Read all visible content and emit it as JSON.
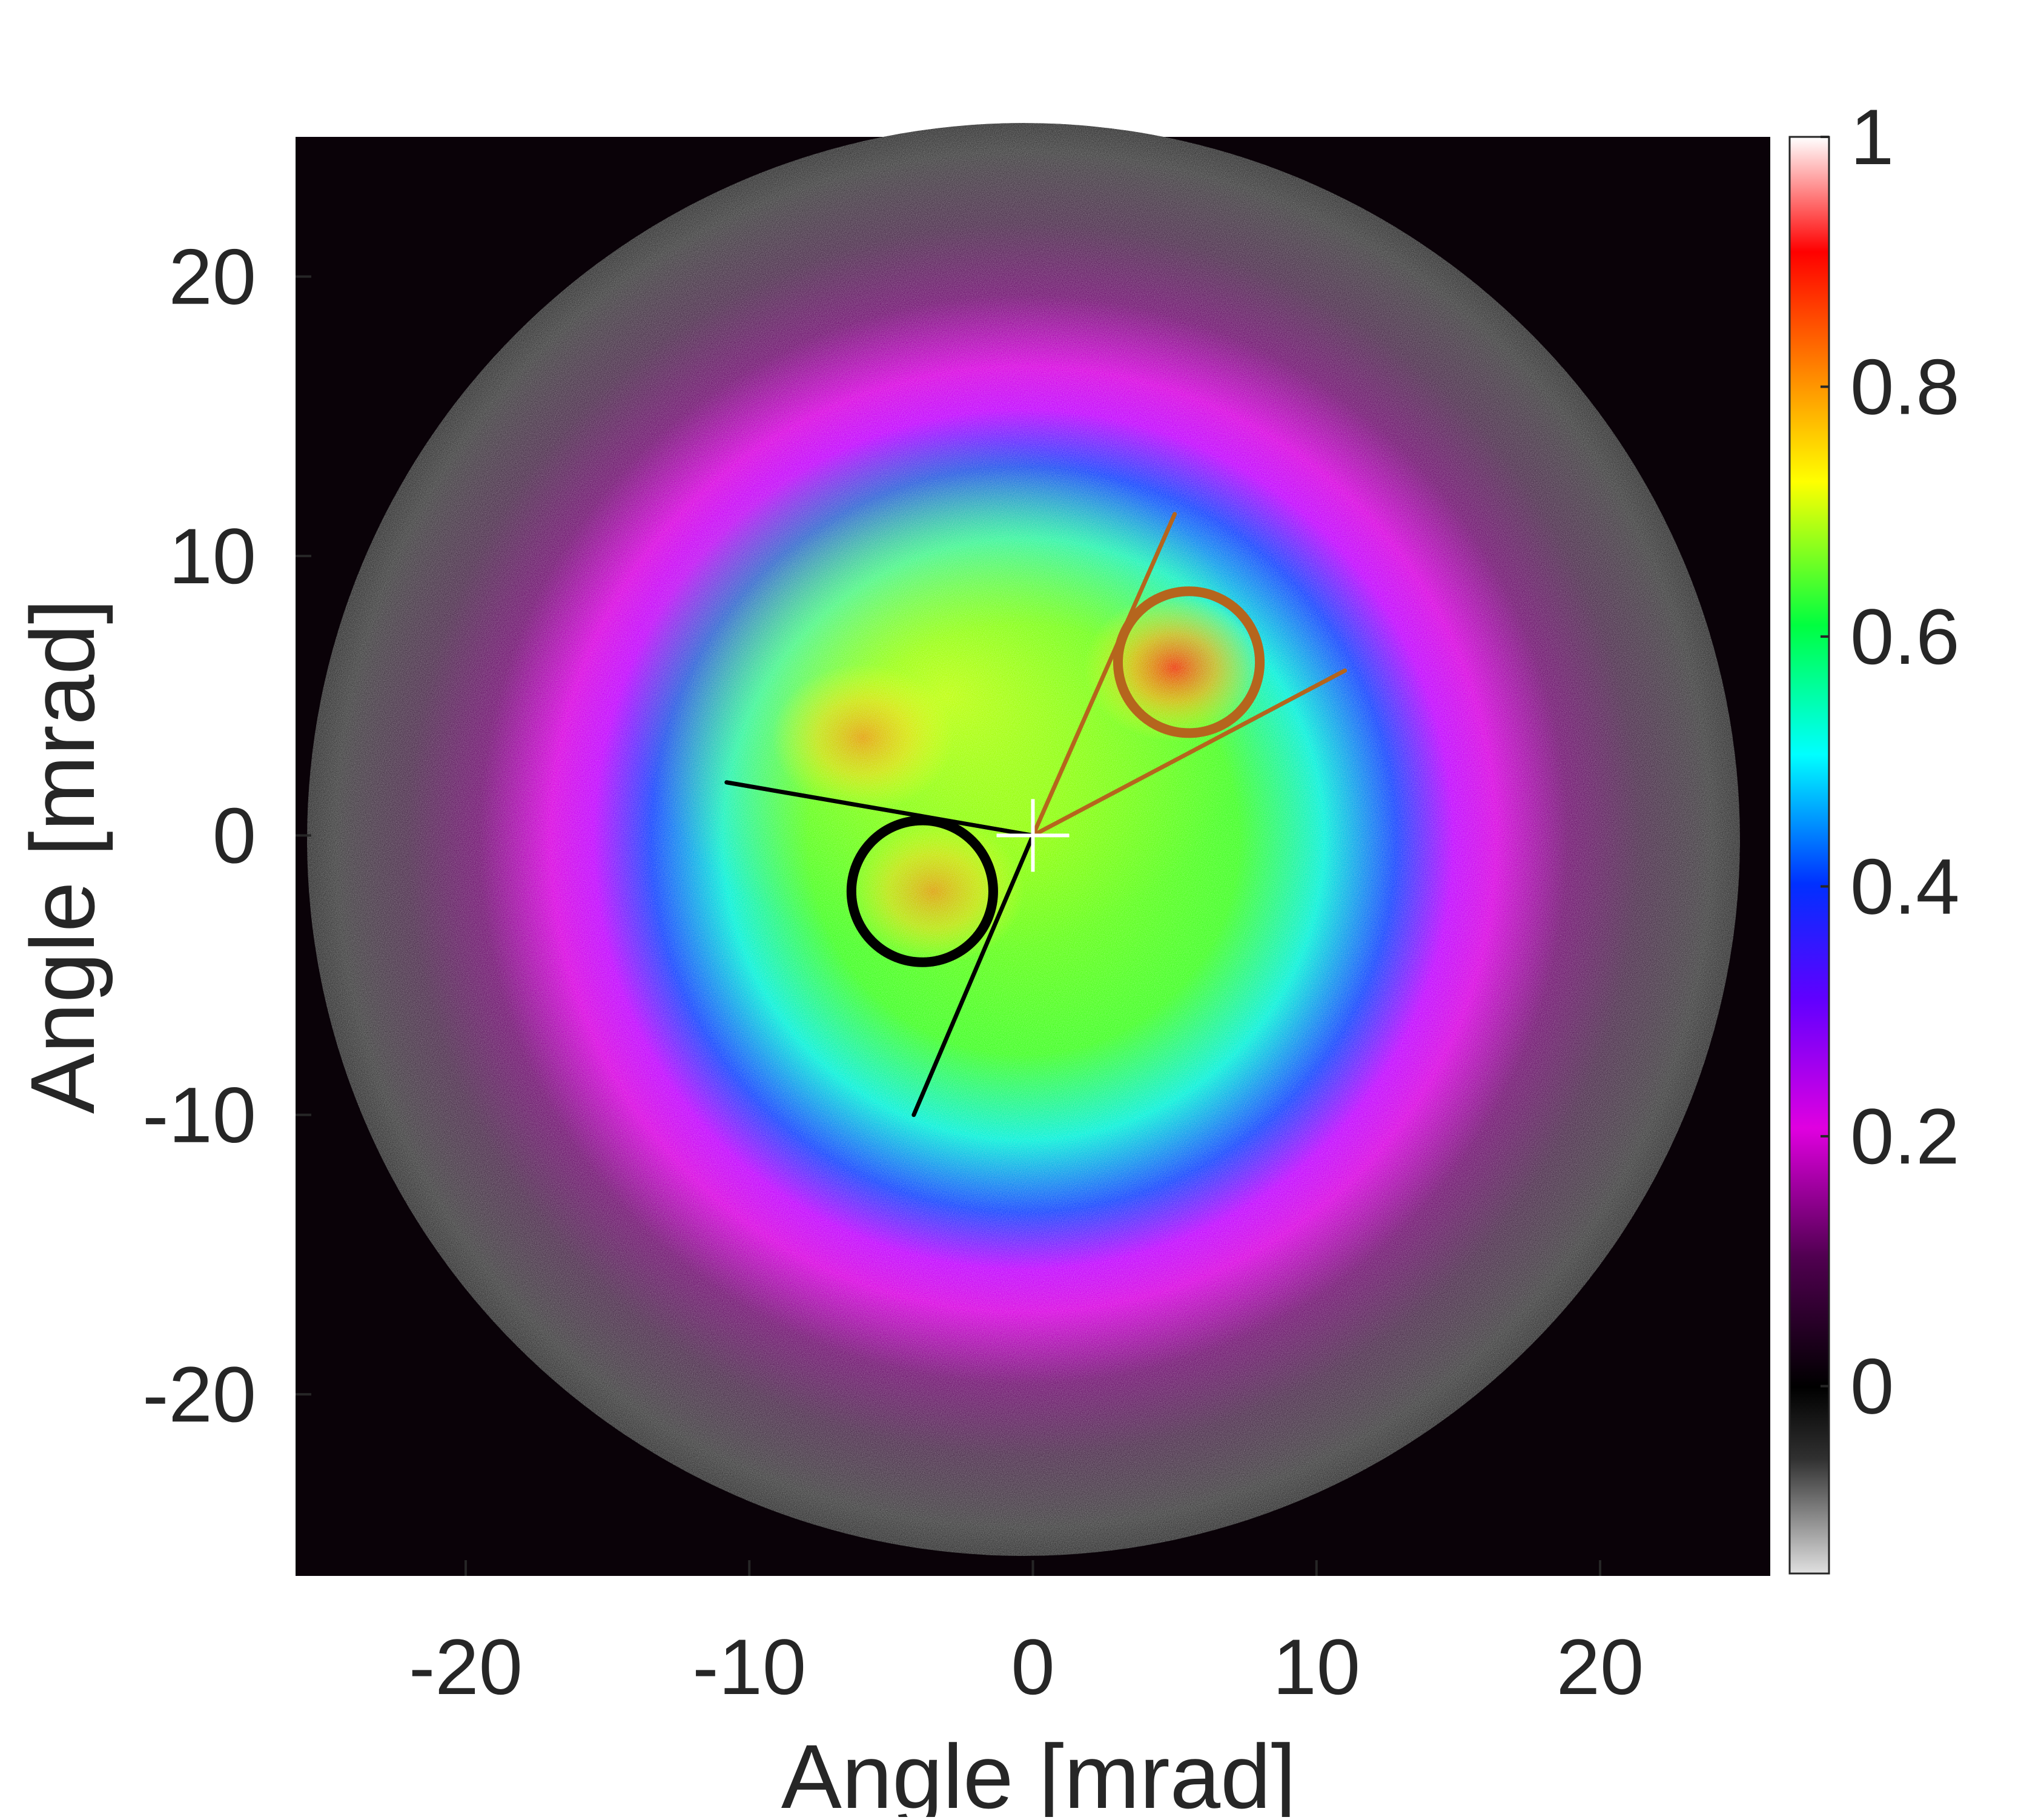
{
  "chart_data": {
    "type": "heatmap",
    "xlabel": "Angle [mrad]",
    "ylabel": "Angle [mrad]",
    "xlim": [
      -26,
      26
    ],
    "ylim": [
      -26.5,
      25
    ],
    "xticks": [
      -20,
      -10,
      0,
      10,
      20
    ],
    "yticks": [
      -20,
      -10,
      0,
      10,
      20
    ],
    "xtick_labels": [
      "-20",
      "-10",
      "0",
      "10",
      "20"
    ],
    "ytick_labels": [
      "-20",
      "-10",
      "0",
      "10",
      "20"
    ],
    "colorbar": {
      "range": [
        -0.15,
        1
      ],
      "ticks": [
        0,
        0.2,
        0.4,
        0.6,
        0.8,
        1
      ],
      "tick_labels": [
        "0",
        "0.2",
        "0.4",
        "0.6",
        "0.8",
        "1"
      ],
      "colormap": "gray (below 0) + purple-blue-cyan-green-yellow-red-white"
    },
    "intensity_pattern": {
      "disk_radius": 25.5,
      "profile": "radial falloff with a broad bright core",
      "hot_spots": [
        {
          "x": 5,
          "y": 6,
          "peak": 0.9
        },
        {
          "x": -6,
          "y": 3.5,
          "peak": 0.8
        },
        {
          "x": -3.5,
          "y": -2,
          "peak": 0.8
        }
      ]
    },
    "annotations": {
      "center_marker": {
        "x": 0,
        "y": 0,
        "color": "#ffffff"
      },
      "circles": [
        {
          "cx": 5.5,
          "cy": 6.2,
          "r": 2.5,
          "color": "#b5651d"
        },
        {
          "cx": -3.9,
          "cy": -2,
          "r": 2.5,
          "color": "#000000"
        }
      ],
      "lines": [
        {
          "from": [
            0,
            0
          ],
          "to": [
            5,
            11.5
          ],
          "color": "#b5651d"
        },
        {
          "from": [
            0,
            0
          ],
          "to": [
            11,
            5.9
          ],
          "color": "#b5651d"
        },
        {
          "from": [
            0,
            0
          ],
          "to": [
            -10.8,
            1.9
          ],
          "color": "#000000"
        },
        {
          "from": [
            0,
            0
          ],
          "to": [
            -4.2,
            -10
          ],
          "color": "#000000"
        }
      ]
    }
  }
}
